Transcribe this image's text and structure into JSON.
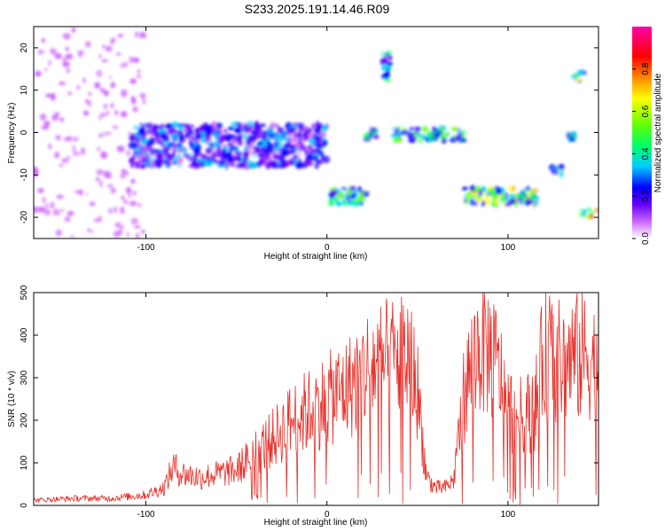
{
  "title": "S233.2025.191.14.46.R09",
  "chart_data": [
    {
      "type": "heatmap",
      "xlabel": "Height of straight line (km)",
      "ylabel": "Frequency (Hz)",
      "xlim": [
        -162,
        150
      ],
      "ylim": [
        -25,
        25
      ],
      "xticks": [
        -100,
        0,
        100
      ],
      "yticks": [
        -20,
        -10,
        0,
        10,
        20
      ],
      "colorbar": {
        "label": "Normalized spectral amplitude",
        "range": [
          0,
          1
        ],
        "ticks": [
          0.0,
          0.2,
          0.4,
          0.6,
          0.8
        ],
        "colormap": [
          "#ffffff",
          "#cc66ff",
          "#6600ff",
          "#0000ff",
          "#00ccff",
          "#00ff66",
          "#66ff00",
          "#ffff00",
          "#ff8800",
          "#ff0000",
          "#ff00aa"
        ]
      },
      "features": [
        {
          "x_range": [
            -162,
            -100
          ],
          "freq_range": [
            -25,
            25
          ],
          "amplitude": 0.1
        },
        {
          "x_range": [
            -108,
            0
          ],
          "freq_range": [
            -8,
            2
          ],
          "amplitude": 0.3
        },
        {
          "x_range": [
            2,
            22
          ],
          "freq_range": [
            -17,
            -13
          ],
          "amplitude": 0.5
        },
        {
          "x_range": [
            22,
            28
          ],
          "freq_range": [
            -2,
            1
          ],
          "amplitude": 0.45
        },
        {
          "x_range": [
            30,
            35
          ],
          "freq_range": [
            12,
            19
          ],
          "amplitude": 0.5
        },
        {
          "x_range": [
            36,
            76
          ],
          "freq_range": [
            -2,
            1
          ],
          "amplitude": 0.5
        },
        {
          "x_range": [
            76,
            118
          ],
          "freq_range": [
            -17,
            -13
          ],
          "amplitude": 0.6
        },
        {
          "x_range": [
            124,
            130
          ],
          "freq_range": [
            -10,
            -8
          ],
          "amplitude": 0.35
        },
        {
          "x_range": [
            133,
            137
          ],
          "freq_range": [
            -2,
            0
          ],
          "amplitude": 0.4
        },
        {
          "x_range": [
            136,
            142
          ],
          "freq_range": [
            12,
            15
          ],
          "amplitude": 0.6
        },
        {
          "x_range": [
            140,
            150
          ],
          "freq_range": [
            -20,
            -18
          ],
          "amplitude": 0.7
        }
      ]
    },
    {
      "type": "line",
      "xlabel": "Height of straight line (km)",
      "ylabel": "SNR (10 * v/v)",
      "xlim": [
        -162,
        150
      ],
      "ylim": [
        0,
        500
      ],
      "xticks": [
        -100,
        0,
        100
      ],
      "yticks": [
        0,
        100,
        200,
        300,
        400,
        500
      ],
      "color": "#e8302a",
      "x": [
        -160,
        -140,
        -120,
        -100,
        -90,
        -85,
        -80,
        -70,
        -60,
        -50,
        -40,
        -30,
        -20,
        -10,
        0,
        10,
        15,
        20,
        25,
        30,
        35,
        40,
        45,
        50,
        55,
        60,
        65,
        70,
        75,
        80,
        85,
        90,
        95,
        100,
        105,
        110,
        115,
        120,
        125,
        130,
        135,
        140,
        145,
        150
      ],
      "values": [
        15,
        20,
        20,
        30,
        50,
        110,
        90,
        80,
        90,
        100,
        150,
        190,
        240,
        270,
        300,
        330,
        350,
        380,
        400,
        400,
        410,
        420,
        430,
        330,
        80,
        50,
        50,
        70,
        300,
        400,
        460,
        440,
        380,
        280,
        250,
        260,
        280,
        440,
        420,
        400,
        420,
        420,
        430,
        380
      ]
    }
  ]
}
